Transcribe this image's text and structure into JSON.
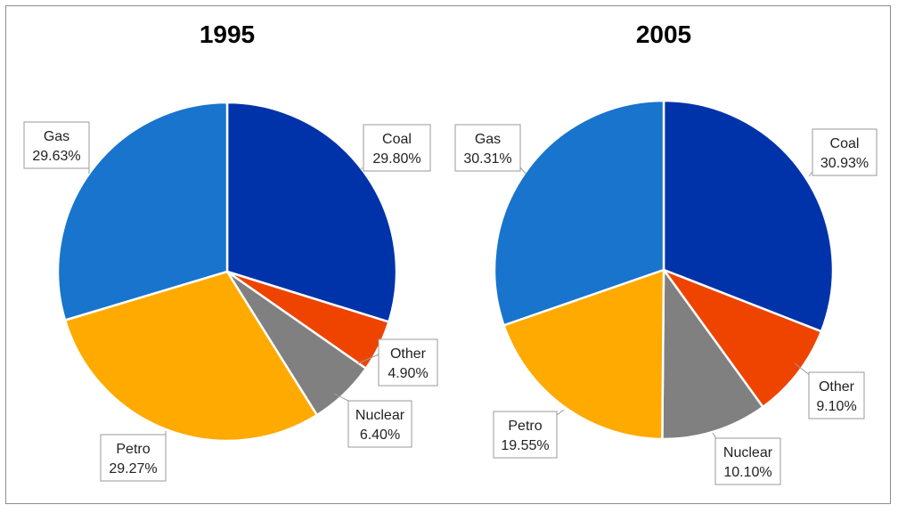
{
  "chart_data": [
    {
      "type": "pie",
      "title": "1995",
      "categories": [
        "Coal",
        "Other",
        "Nuclear",
        "Petro",
        "Gas"
      ],
      "values": [
        29.8,
        4.9,
        6.4,
        29.27,
        29.63
      ],
      "value_labels": [
        "29.80%",
        "4.90%",
        "6.40%",
        "29.27%",
        "29.63%"
      ],
      "colors": [
        "#0033aa",
        "#ee4400",
        "#808080",
        "#ffaa00",
        "#1874cc"
      ],
      "start_angle_deg": 0,
      "direction": "clockwise"
    },
    {
      "type": "pie",
      "title": "2005",
      "categories": [
        "Coal",
        "Other",
        "Nuclear",
        "Petro",
        "Gas"
      ],
      "values": [
        30.93,
        9.1,
        10.1,
        19.55,
        30.31
      ],
      "value_labels": [
        "30.93%",
        "9.10%",
        "10.10%",
        "19.55%",
        "30.31%"
      ],
      "colors": [
        "#0033aa",
        "#ee4400",
        "#808080",
        "#ffaa00",
        "#1874cc"
      ],
      "start_angle_deg": 0,
      "direction": "clockwise"
    }
  ]
}
